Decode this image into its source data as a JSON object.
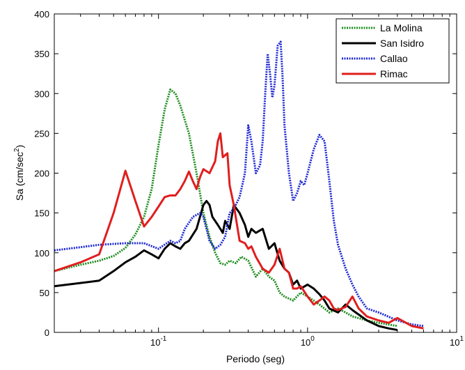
{
  "chart_data": {
    "type": "line",
    "xscale": "log",
    "xlim": [
      0.02,
      10
    ],
    "ylim": [
      0,
      400
    ],
    "xlabel": "Periodo (seg)",
    "ylabel_base": "Sa (cm/sec",
    "ylabel_sup": "2",
    "ylabel_tail": ")",
    "yticks": [
      0,
      50,
      100,
      150,
      200,
      250,
      300,
      350,
      400
    ],
    "ytick_labels": [
      "0",
      "50",
      "100",
      "150",
      "200",
      "250",
      "300",
      "350",
      "400"
    ],
    "xticks": [
      {
        "value": 0.1,
        "base": "10",
        "exp": "-1"
      },
      {
        "value": 1,
        "base": "10",
        "exp": "0"
      },
      {
        "value": 10,
        "base": "10",
        "exp": "1"
      }
    ],
    "grid": false,
    "legend_position": "top-right",
    "series": [
      {
        "name": "La Molina",
        "color": "#1e8c1e",
        "dash": "dotted",
        "points": [
          [
            0.02,
            77
          ],
          [
            0.03,
            85
          ],
          [
            0.04,
            90
          ],
          [
            0.05,
            96
          ],
          [
            0.06,
            106
          ],
          [
            0.07,
            123
          ],
          [
            0.08,
            145
          ],
          [
            0.09,
            180
          ],
          [
            0.1,
            235
          ],
          [
            0.11,
            280
          ],
          [
            0.12,
            305
          ],
          [
            0.13,
            300
          ],
          [
            0.14,
            285
          ],
          [
            0.16,
            250
          ],
          [
            0.18,
            200
          ],
          [
            0.2,
            150
          ],
          [
            0.22,
            120
          ],
          [
            0.24,
            100
          ],
          [
            0.26,
            87
          ],
          [
            0.28,
            85
          ],
          [
            0.3,
            90
          ],
          [
            0.33,
            87
          ],
          [
            0.36,
            95
          ],
          [
            0.4,
            90
          ],
          [
            0.45,
            70
          ],
          [
            0.5,
            80
          ],
          [
            0.55,
            70
          ],
          [
            0.6,
            65
          ],
          [
            0.65,
            50
          ],
          [
            0.7,
            45
          ],
          [
            0.8,
            40
          ],
          [
            0.9,
            50
          ],
          [
            1.0,
            45
          ],
          [
            1.1,
            40
          ],
          [
            1.2,
            35
          ],
          [
            1.4,
            25
          ],
          [
            1.6,
            30
          ],
          [
            1.8,
            25
          ],
          [
            2.0,
            20
          ],
          [
            2.5,
            15
          ],
          [
            3.0,
            12
          ],
          [
            4.0,
            8
          ]
        ]
      },
      {
        "name": "San Isidro",
        "color": "#000000",
        "dash": "solid",
        "points": [
          [
            0.02,
            58
          ],
          [
            0.03,
            62
          ],
          [
            0.04,
            65
          ],
          [
            0.05,
            77
          ],
          [
            0.06,
            88
          ],
          [
            0.07,
            95
          ],
          [
            0.08,
            103
          ],
          [
            0.09,
            98
          ],
          [
            0.1,
            93
          ],
          [
            0.11,
            105
          ],
          [
            0.12,
            112
          ],
          [
            0.13,
            108
          ],
          [
            0.14,
            105
          ],
          [
            0.15,
            112
          ],
          [
            0.16,
            115
          ],
          [
            0.18,
            130
          ],
          [
            0.2,
            160
          ],
          [
            0.21,
            165
          ],
          [
            0.22,
            160
          ],
          [
            0.23,
            145
          ],
          [
            0.25,
            135
          ],
          [
            0.27,
            125
          ],
          [
            0.28,
            140
          ],
          [
            0.3,
            130
          ],
          [
            0.32,
            160
          ],
          [
            0.35,
            150
          ],
          [
            0.38,
            135
          ],
          [
            0.4,
            120
          ],
          [
            0.42,
            130
          ],
          [
            0.45,
            125
          ],
          [
            0.5,
            130
          ],
          [
            0.55,
            105
          ],
          [
            0.6,
            112
          ],
          [
            0.65,
            90
          ],
          [
            0.7,
            80
          ],
          [
            0.75,
            75
          ],
          [
            0.8,
            60
          ],
          [
            0.85,
            65
          ],
          [
            0.9,
            55
          ],
          [
            1.0,
            60
          ],
          [
            1.1,
            55
          ],
          [
            1.2,
            48
          ],
          [
            1.3,
            40
          ],
          [
            1.4,
            30
          ],
          [
            1.6,
            25
          ],
          [
            1.8,
            35
          ],
          [
            2.0,
            28
          ],
          [
            2.5,
            15
          ],
          [
            3.0,
            8
          ],
          [
            3.5,
            5
          ],
          [
            4.0,
            3
          ]
        ]
      },
      {
        "name": "Callao",
        "color": "#1e28d2",
        "dash": "dotted",
        "points": [
          [
            0.02,
            103
          ],
          [
            0.03,
            107
          ],
          [
            0.04,
            110
          ],
          [
            0.06,
            112
          ],
          [
            0.08,
            112
          ],
          [
            0.1,
            105
          ],
          [
            0.12,
            115
          ],
          [
            0.13,
            112
          ],
          [
            0.14,
            115
          ],
          [
            0.15,
            130
          ],
          [
            0.17,
            145
          ],
          [
            0.19,
            150
          ],
          [
            0.2,
            145
          ],
          [
            0.22,
            115
          ],
          [
            0.24,
            105
          ],
          [
            0.26,
            110
          ],
          [
            0.28,
            120
          ],
          [
            0.3,
            150
          ],
          [
            0.32,
            155
          ],
          [
            0.35,
            170
          ],
          [
            0.38,
            200
          ],
          [
            0.4,
            260
          ],
          [
            0.42,
            240
          ],
          [
            0.45,
            200
          ],
          [
            0.48,
            210
          ],
          [
            0.5,
            240
          ],
          [
            0.52,
            300
          ],
          [
            0.54,
            350
          ],
          [
            0.56,
            325
          ],
          [
            0.58,
            295
          ],
          [
            0.6,
            310
          ],
          [
            0.63,
            360
          ],
          [
            0.66,
            365
          ],
          [
            0.68,
            320
          ],
          [
            0.7,
            260
          ],
          [
            0.75,
            200
          ],
          [
            0.8,
            165
          ],
          [
            0.85,
            175
          ],
          [
            0.9,
            190
          ],
          [
            0.95,
            185
          ],
          [
            1.0,
            200
          ],
          [
            1.1,
            230
          ],
          [
            1.2,
            248
          ],
          [
            1.3,
            240
          ],
          [
            1.4,
            190
          ],
          [
            1.5,
            140
          ],
          [
            1.6,
            110
          ],
          [
            1.8,
            80
          ],
          [
            2.0,
            60
          ],
          [
            2.2,
            45
          ],
          [
            2.5,
            30
          ],
          [
            3.0,
            25
          ],
          [
            4.0,
            15
          ],
          [
            5.0,
            10
          ],
          [
            6.0,
            8
          ]
        ]
      },
      {
        "name": "Rimac",
        "color": "#e01e1e",
        "dash": "solid",
        "points": [
          [
            0.02,
            77
          ],
          [
            0.03,
            88
          ],
          [
            0.04,
            98
          ],
          [
            0.05,
            150
          ],
          [
            0.06,
            203
          ],
          [
            0.07,
            165
          ],
          [
            0.08,
            133
          ],
          [
            0.09,
            145
          ],
          [
            0.1,
            158
          ],
          [
            0.11,
            170
          ],
          [
            0.12,
            172
          ],
          [
            0.13,
            172
          ],
          [
            0.14,
            180
          ],
          [
            0.15,
            190
          ],
          [
            0.16,
            202
          ],
          [
            0.17,
            190
          ],
          [
            0.18,
            180
          ],
          [
            0.19,
            195
          ],
          [
            0.2,
            205
          ],
          [
            0.22,
            200
          ],
          [
            0.24,
            215
          ],
          [
            0.25,
            240
          ],
          [
            0.26,
            250
          ],
          [
            0.27,
            220
          ],
          [
            0.29,
            225
          ],
          [
            0.3,
            185
          ],
          [
            0.32,
            160
          ],
          [
            0.35,
            115
          ],
          [
            0.38,
            112
          ],
          [
            0.4,
            105
          ],
          [
            0.42,
            108
          ],
          [
            0.45,
            95
          ],
          [
            0.5,
            80
          ],
          [
            0.55,
            75
          ],
          [
            0.6,
            85
          ],
          [
            0.65,
            105
          ],
          [
            0.7,
            80
          ],
          [
            0.75,
            75
          ],
          [
            0.8,
            55
          ],
          [
            0.85,
            55
          ],
          [
            0.9,
            58
          ],
          [
            1.0,
            45
          ],
          [
            1.1,
            35
          ],
          [
            1.2,
            40
          ],
          [
            1.3,
            45
          ],
          [
            1.4,
            40
          ],
          [
            1.5,
            30
          ],
          [
            1.6,
            28
          ],
          [
            1.8,
            32
          ],
          [
            2.0,
            45
          ],
          [
            2.2,
            30
          ],
          [
            2.5,
            20
          ],
          [
            3.0,
            15
          ],
          [
            3.5,
            12
          ],
          [
            4.0,
            18
          ],
          [
            5.0,
            8
          ],
          [
            6.0,
            5
          ]
        ]
      }
    ]
  }
}
